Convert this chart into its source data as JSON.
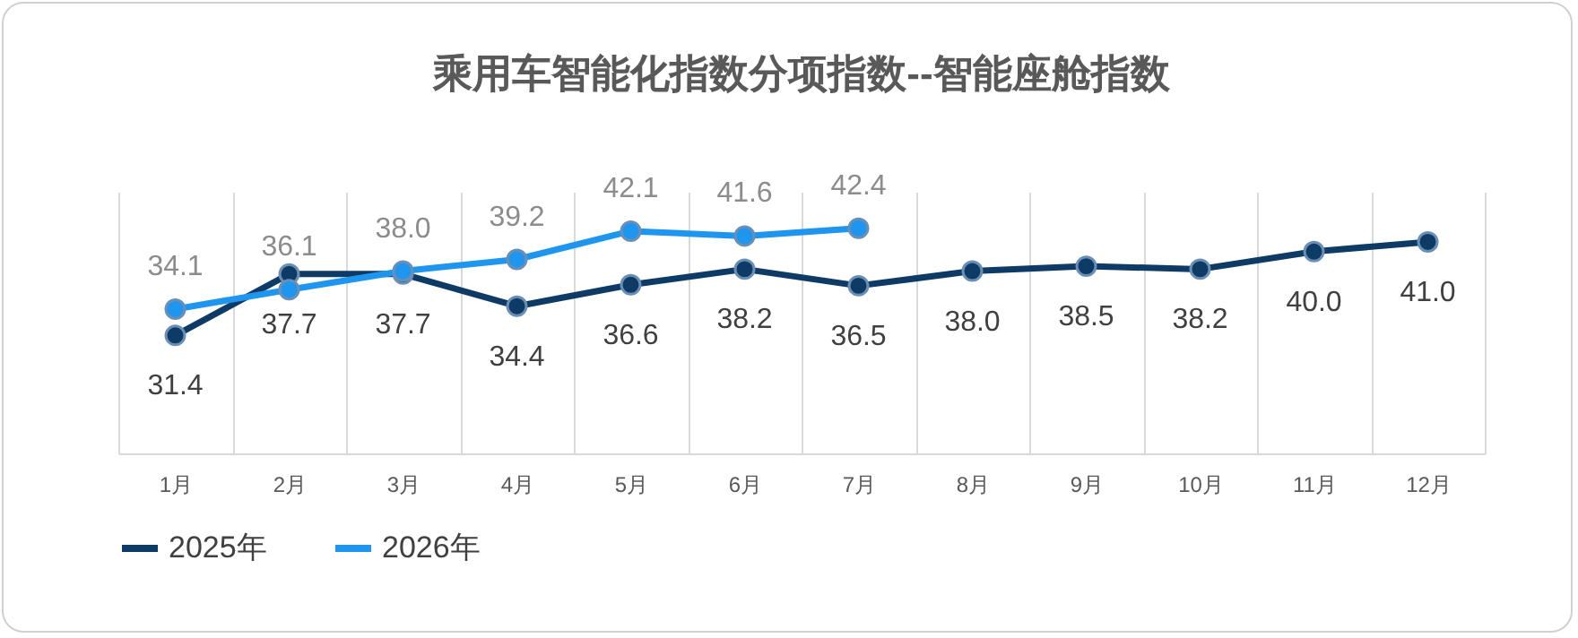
{
  "chart_data": {
    "type": "line",
    "title": "乘用车智能化指数分项指数--智能座舱指数",
    "categories": [
      "1月",
      "2月",
      "3月",
      "4月",
      "5月",
      "6月",
      "7月",
      "8月",
      "9月",
      "10月",
      "11月",
      "12月"
    ],
    "series": [
      {
        "name": "2025年",
        "color": "#0e3a66",
        "values": [
          31.4,
          37.7,
          37.7,
          34.4,
          36.6,
          38.2,
          36.5,
          38.0,
          38.5,
          38.2,
          40.0,
          41.0
        ],
        "value_labels": [
          "31.4",
          "37.7",
          "37.7",
          "34.4",
          "36.6",
          "38.2",
          "36.5",
          "38.0",
          "38.5",
          "38.2",
          "40.0",
          "41.0"
        ]
      },
      {
        "name": "2026年",
        "color": "#1e96f0",
        "values": [
          34.1,
          36.1,
          38.0,
          39.2,
          42.1,
          41.6,
          42.4,
          null,
          null,
          null,
          null,
          null
        ],
        "value_labels": [
          "34.1",
          "36.1",
          "38.0",
          "39.2",
          "42.1",
          "41.6",
          "42.4",
          null,
          null,
          null,
          null,
          null
        ]
      }
    ],
    "grid": "x",
    "legend": "bottom",
    "marker": "circle",
    "line_style": "solid",
    "tick_labels": "x"
  }
}
